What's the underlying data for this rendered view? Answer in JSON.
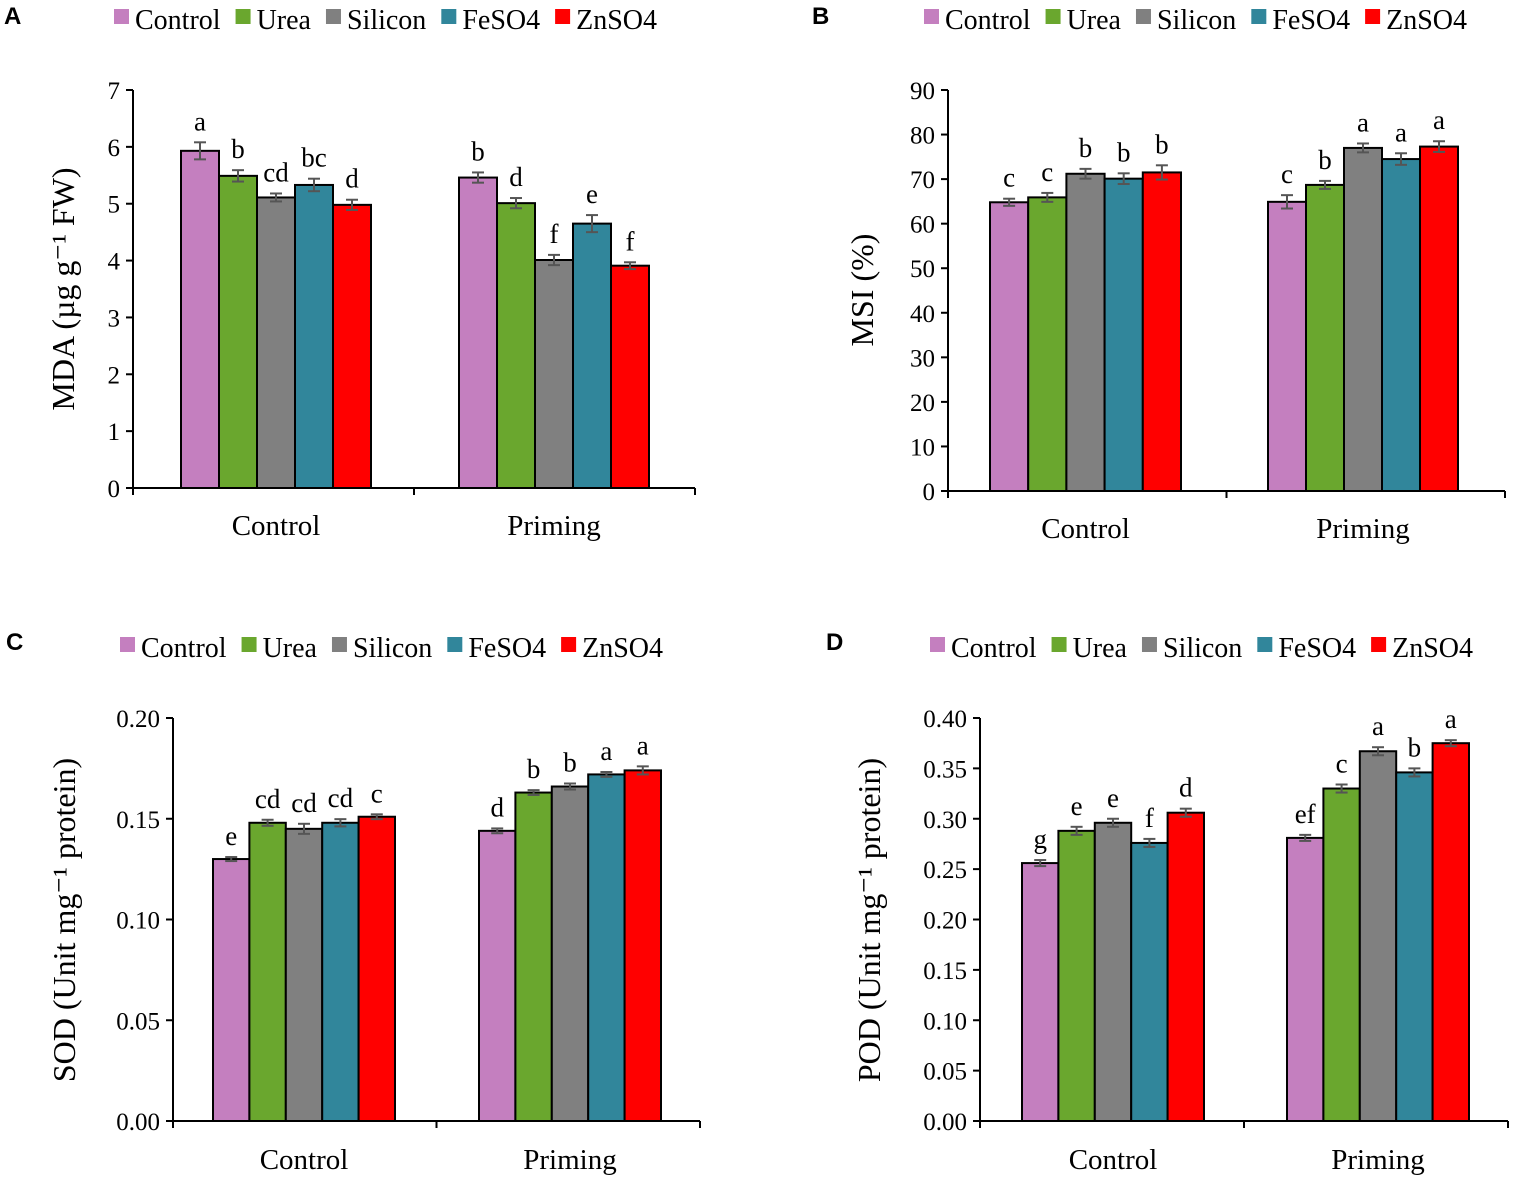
{
  "figure": {
    "panels": [
      "A",
      "B",
      "C",
      "D"
    ]
  },
  "chart_data": [
    {
      "panel": "A",
      "type": "bar",
      "title": "",
      "xlabel": "",
      "ylabel": "MDA (µg g⁻¹ FW)",
      "ylim": [
        0,
        7
      ],
      "yticks": [
        "0",
        "1",
        "2",
        "3",
        "4",
        "5",
        "6",
        "7"
      ],
      "yticks_values": [
        0,
        1,
        2,
        3,
        4,
        5,
        6,
        7
      ],
      "categories": [
        "Control",
        "Priming"
      ],
      "legend_position": "top",
      "series": [
        {
          "name": "Control",
          "color": "#C47FBF",
          "values": [
            5.93,
            5.46
          ],
          "errors": [
            0.15,
            0.09
          ],
          "letters": [
            "a",
            "b"
          ]
        },
        {
          "name": "Urea",
          "color": "#6AA72E",
          "values": [
            5.49,
            5.01
          ],
          "errors": [
            0.1,
            0.09
          ],
          "letters": [
            "b",
            "d"
          ]
        },
        {
          "name": "Silicon",
          "color": "#808080",
          "values": [
            5.11,
            4.01
          ],
          "errors": [
            0.07,
            0.09
          ],
          "letters": [
            "cd",
            "f"
          ]
        },
        {
          "name": "FeSO4",
          "color": "#31869B",
          "values": [
            5.33,
            4.65
          ],
          "errors": [
            0.11,
            0.15
          ],
          "letters": [
            "bc",
            "e"
          ]
        },
        {
          "name": "ZnSO4",
          "color": "#FF0000",
          "values": [
            4.98,
            3.91
          ],
          "errors": [
            0.09,
            0.06
          ],
          "letters": [
            "d",
            "f"
          ]
        }
      ]
    },
    {
      "panel": "B",
      "type": "bar",
      "title": "",
      "xlabel": "",
      "ylabel": "MSI (%)",
      "ylim": [
        0,
        90
      ],
      "yticks": [
        "0",
        "10",
        "20",
        "30",
        "40",
        "50",
        "60",
        "70",
        "80",
        "90"
      ],
      "yticks_values": [
        0,
        10,
        20,
        30,
        40,
        50,
        60,
        70,
        80,
        90
      ],
      "categories": [
        "Control",
        "Priming"
      ],
      "legend_position": "top",
      "series": [
        {
          "name": "Control",
          "color": "#C47FBF",
          "values": [
            64.8,
            64.9
          ],
          "errors": [
            0.8,
            1.5
          ],
          "letters": [
            "c",
            "c"
          ]
        },
        {
          "name": "Urea",
          "color": "#6AA72E",
          "values": [
            65.9,
            68.7
          ],
          "errors": [
            1.0,
            0.9
          ],
          "letters": [
            "c",
            "b"
          ]
        },
        {
          "name": "Silicon",
          "color": "#808080",
          "values": [
            71.2,
            77.0
          ],
          "errors": [
            1.1,
            1.0
          ],
          "letters": [
            "b",
            "a"
          ]
        },
        {
          "name": "FeSO4",
          "color": "#31869B",
          "values": [
            70.1,
            74.5
          ],
          "errors": [
            1.2,
            1.3
          ],
          "letters": [
            "b",
            "a"
          ]
        },
        {
          "name": "ZnSO4",
          "color": "#FF0000",
          "values": [
            71.5,
            77.3
          ],
          "errors": [
            1.6,
            1.2
          ],
          "letters": [
            "b",
            "a"
          ]
        }
      ]
    },
    {
      "panel": "C",
      "type": "bar",
      "title": "",
      "xlabel": "",
      "ylabel": "SOD (Unit mg⁻¹  protein)",
      "ylim": [
        0,
        0.2
      ],
      "yticks": [
        "0.00",
        "0.05",
        "0.10",
        "0.15",
        "0.20"
      ],
      "yticks_values": [
        0,
        0.05,
        0.1,
        0.15,
        0.2
      ],
      "categories": [
        "Control",
        "Priming"
      ],
      "legend_position": "top",
      "series": [
        {
          "name": "Control",
          "color": "#C47FBF",
          "values": [
            0.13,
            0.144
          ],
          "errors": [
            0.001,
            0.0012
          ],
          "letters": [
            "e",
            "d"
          ]
        },
        {
          "name": "Urea",
          "color": "#6AA72E",
          "values": [
            0.148,
            0.163
          ],
          "errors": [
            0.0015,
            0.0012
          ],
          "letters": [
            "cd",
            "b"
          ]
        },
        {
          "name": "Silicon",
          "color": "#808080",
          "values": [
            0.145,
            0.166
          ],
          "errors": [
            0.0025,
            0.0015
          ],
          "letters": [
            "cd",
            "b"
          ]
        },
        {
          "name": "FeSO4",
          "color": "#31869B",
          "values": [
            0.148,
            0.172
          ],
          "errors": [
            0.0018,
            0.0012
          ],
          "letters": [
            "cd",
            "a"
          ]
        },
        {
          "name": "ZnSO4",
          "color": "#FF0000",
          "values": [
            0.151,
            0.174
          ],
          "errors": [
            0.0012,
            0.002
          ],
          "letters": [
            "c",
            "a"
          ]
        }
      ]
    },
    {
      "panel": "D",
      "type": "bar",
      "title": "",
      "xlabel": "",
      "ylabel": "POD (Unit mg⁻¹  protein)",
      "ylim": [
        0,
        0.4
      ],
      "yticks": [
        "0.00",
        "0.05",
        "0.10",
        "0.15",
        "0.20",
        "0.25",
        "0.30",
        "0.35",
        "0.40"
      ],
      "yticks_values": [
        0,
        0.05,
        0.1,
        0.15,
        0.2,
        0.25,
        0.3,
        0.35,
        0.4
      ],
      "categories": [
        "Control",
        "Priming"
      ],
      "legend_position": "top",
      "series": [
        {
          "name": "Control",
          "color": "#C47FBF",
          "values": [
            0.256,
            0.281
          ],
          "errors": [
            0.003,
            0.003
          ],
          "letters": [
            "g",
            "ef"
          ]
        },
        {
          "name": "Urea",
          "color": "#6AA72E",
          "values": [
            0.288,
            0.33
          ],
          "errors": [
            0.004,
            0.004
          ],
          "letters": [
            "e",
            "c"
          ]
        },
        {
          "name": "Silicon",
          "color": "#808080",
          "values": [
            0.296,
            0.367
          ],
          "errors": [
            0.004,
            0.004
          ],
          "letters": [
            "e",
            "a"
          ]
        },
        {
          "name": "FeSO4",
          "color": "#31869B",
          "values": [
            0.276,
            0.346
          ],
          "errors": [
            0.004,
            0.004
          ],
          "letters": [
            "f",
            "b"
          ]
        },
        {
          "name": "ZnSO4",
          "color": "#FF0000",
          "values": [
            0.306,
            0.375
          ],
          "errors": [
            0.004,
            0.003
          ],
          "letters": [
            "d",
            "a"
          ]
        }
      ]
    }
  ]
}
